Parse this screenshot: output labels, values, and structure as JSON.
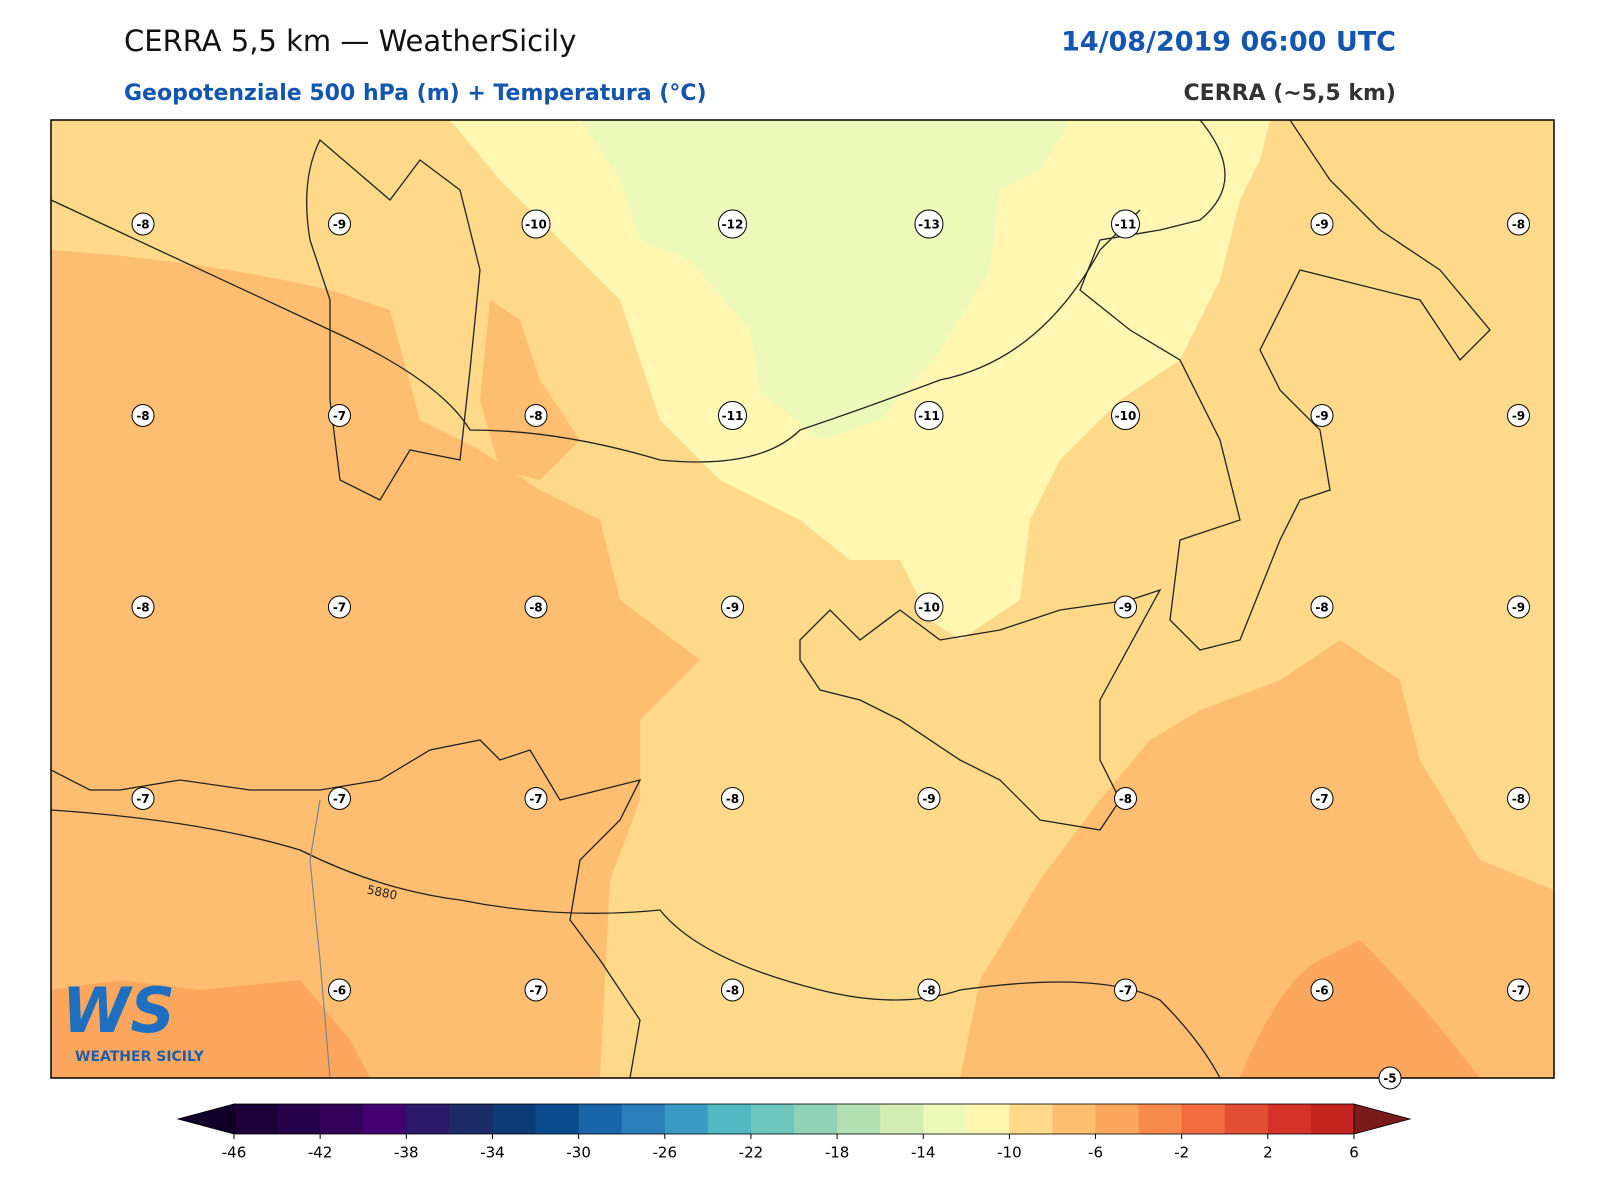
{
  "header": {
    "title": "CERRA 5,5 km — WeatherSicily",
    "date": "14/08/2019 06:00 UTC",
    "subtitle": "Geopotenziale 500 hPa (m) + Temperatura (°C)",
    "source": "CERRA (~5,5 km)"
  },
  "map": {
    "grid": [
      [
        -8,
        -9,
        -10,
        -12,
        -13,
        -11,
        -9,
        -8
      ],
      [
        -8,
        -7,
        -8,
        -11,
        -11,
        -10,
        -9,
        -9
      ],
      [
        -8,
        -7,
        -8,
        -9,
        -10,
        -9,
        -8,
        -9
      ],
      [
        -7,
        -7,
        -7,
        -8,
        -9,
        -8,
        -7,
        -8
      ],
      [
        null,
        -6,
        -7,
        -8,
        -8,
        -7,
        -6,
        -7
      ]
    ],
    "edge_label": -5,
    "contour_label": "5880"
  },
  "logo": {
    "mark": "WS",
    "text": "WEATHER SICILY"
  },
  "colorbar": {
    "lim": [
      -46,
      6
    ],
    "ticks": [
      -46,
      -42,
      -38,
      -34,
      -30,
      -26,
      -22,
      -18,
      -14,
      -10,
      -6,
      -2,
      2,
      6
    ],
    "colors": [
      "#1c0036",
      "#260048",
      "#330058",
      "#420070",
      "#2c1a6c",
      "#1c2a68",
      "#0c3a74",
      "#0a4b8c",
      "#1a64aa",
      "#2a7fbb",
      "#3a9ac4",
      "#52b8c2",
      "#6ec5bb",
      "#8fd2b8",
      "#b1dfb1",
      "#d2ecb2",
      "#edf8bb",
      "#fff6b2",
      "#fed98a",
      "#fdbe72",
      "#fca65e",
      "#f88a4e",
      "#f26c40",
      "#e44e33",
      "#d63328",
      "#c42420"
    ],
    "under": "#12002a",
    "over": "#7a1a1a"
  }
}
